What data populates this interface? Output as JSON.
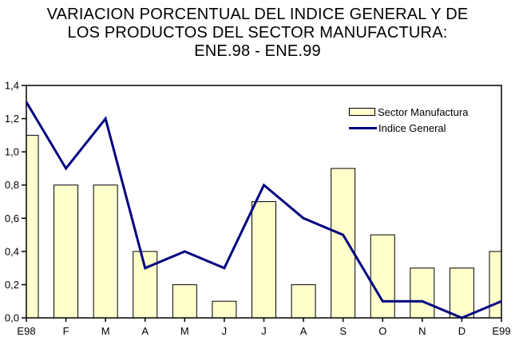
{
  "header": {
    "title_line1": "VARIACION PORCENTUAL DEL INDICE GENERAL Y DE",
    "title_line2": "LOS PRODUCTOS DEL SECTOR MANUFACTURA:",
    "title_line3": "ENE.98 - ENE.99"
  },
  "chart_data": {
    "type": "bar",
    "combo": "bars with overlaid line",
    "title": "VARIACION PORCENTUAL DEL INDICE GENERAL Y DE LOS PRODUCTOS DEL SECTOR MANUFACTURA: ENE.98 - ENE.99",
    "categories": [
      "E98",
      "F",
      "M",
      "A",
      "M",
      "J",
      "J",
      "A",
      "S",
      "O",
      "N",
      "D",
      "E99"
    ],
    "series": [
      {
        "name": "Sector Manufactura",
        "type": "bar",
        "fill": "#FFFFCC",
        "stroke": "#000000",
        "values": [
          1.1,
          0.8,
          0.8,
          0.4,
          0.2,
          0.1,
          0.7,
          0.2,
          0.9,
          0.5,
          0.3,
          0.3,
          0.4
        ]
      },
      {
        "name": "Indice General",
        "type": "line",
        "color": "#000080",
        "values": [
          1.3,
          0.9,
          1.2,
          0.3,
          0.4,
          0.3,
          0.8,
          0.6,
          0.5,
          0.1,
          0.1,
          0.0,
          0.1
        ]
      }
    ],
    "xlabel": "",
    "ylabel": "",
    "ylim": [
      0,
      1.4
    ],
    "y_ticks": [
      0.0,
      0.2,
      0.4,
      0.6,
      0.8,
      1.0,
      1.2,
      1.4
    ],
    "y_tick_labels": [
      "0,0",
      "0,2",
      "0,4",
      "0,6",
      "0,8",
      "1,0",
      "1,2",
      "1,4"
    ],
    "grid": false,
    "legend_position": "inside top-right",
    "axis_color": "#000000",
    "background": "#FFFFFF"
  }
}
